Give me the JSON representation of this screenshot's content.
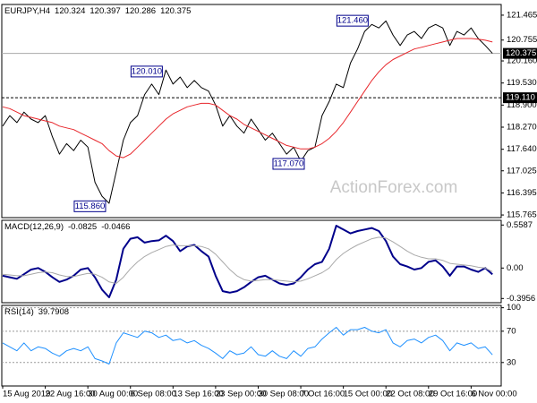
{
  "chart_data": [
    {
      "type": "line",
      "symbol": "EURJPY,H4",
      "ohlc": [
        120.324,
        120.397,
        120.286,
        120.375
      ],
      "watermark": "ActionForex.com",
      "ylim": [
        115.69,
        121.77
      ],
      "yticks": [
        121.465,
        120.755,
        {
          "value": 120.16,
          "label": "120.160"
        },
        {
          "value": 119.53,
          "label": "119.530"
        },
        {
          "value": 118.9,
          "label": "118.900"
        },
        {
          "value": 118.27,
          "label": "118.270"
        },
        {
          "value": 117.64,
          "label": "117.640"
        },
        117.025,
        116.395,
        115.765
      ],
      "last_price": 120.375,
      "level": {
        "value": 119.11,
        "label": "119.110"
      },
      "annotations": [
        {
          "index": 52,
          "value": 121.46,
          "label": "121.460"
        },
        {
          "index": 23,
          "value": 120.01,
          "label": "120.010"
        },
        {
          "index": 43,
          "value": 117.07,
          "label": "117.070"
        },
        {
          "index": 15,
          "value": 115.86,
          "label": "115.860"
        }
      ],
      "series": [
        {
          "color": "#000000",
          "values": [
            118.3,
            118.6,
            118.4,
            118.7,
            118.5,
            118.4,
            118.6,
            118.0,
            117.5,
            117.8,
            117.6,
            117.9,
            117.7,
            116.7,
            116.3,
            116.1,
            117.0,
            117.9,
            118.4,
            118.6,
            119.2,
            119.5,
            119.2,
            119.9,
            119.5,
            119.7,
            119.4,
            119.6,
            119.4,
            119.3,
            118.9,
            118.3,
            118.6,
            118.3,
            118.1,
            118.5,
            118.2,
            117.9,
            118.1,
            117.8,
            117.5,
            117.7,
            117.3,
            117.6,
            117.7,
            118.6,
            119.0,
            119.5,
            119.4,
            120.1,
            120.5,
            121.0,
            121.2,
            121.1,
            121.3,
            120.9,
            120.6,
            120.9,
            121.0,
            120.8,
            121.1,
            121.2,
            121.1,
            120.6,
            121.0,
            120.9,
            121.1,
            120.8,
            120.6,
            120.375
          ]
        },
        {
          "color": "#e8262b",
          "values": [
            118.85,
            118.8,
            118.7,
            118.6,
            118.55,
            118.5,
            118.45,
            118.4,
            118.3,
            118.25,
            118.2,
            118.1,
            118.0,
            117.9,
            117.8,
            117.6,
            117.45,
            117.4,
            117.5,
            117.7,
            117.9,
            118.1,
            118.3,
            118.5,
            118.65,
            118.75,
            118.85,
            118.9,
            118.95,
            118.95,
            118.9,
            118.75,
            118.6,
            118.5,
            118.35,
            118.25,
            118.15,
            118.05,
            117.95,
            117.85,
            117.75,
            117.7,
            117.65,
            117.65,
            117.7,
            117.8,
            117.95,
            118.15,
            118.4,
            118.7,
            119.0,
            119.3,
            119.6,
            119.85,
            120.05,
            120.2,
            120.3,
            120.4,
            120.5,
            120.55,
            120.6,
            120.65,
            120.7,
            120.75,
            120.8,
            120.8,
            120.8,
            120.78,
            120.75,
            120.7
          ]
        }
      ]
    },
    {
      "type": "line",
      "name": "MACD(12,26,9)",
      "header_values": [
        -0.0825,
        -0.0466
      ],
      "ylim": [
        -0.45,
        0.62
      ],
      "yticks": [
        0.5587,
        {
          "value": 0,
          "label": "0.00"
        },
        -0.3956
      ],
      "series": [
        {
          "color": "#00008b",
          "width": 2,
          "values": [
            -0.1,
            -0.12,
            -0.14,
            -0.08,
            -0.02,
            0.0,
            -0.05,
            -0.12,
            -0.18,
            -0.15,
            -0.1,
            -0.02,
            0.0,
            -0.12,
            -0.28,
            -0.38,
            -0.15,
            0.25,
            0.38,
            0.4,
            0.33,
            0.35,
            0.36,
            0.42,
            0.35,
            0.22,
            0.28,
            0.3,
            0.22,
            0.15,
            -0.1,
            -0.3,
            -0.32,
            -0.3,
            -0.25,
            -0.18,
            -0.12,
            -0.1,
            -0.15,
            -0.2,
            -0.22,
            -0.2,
            -0.12,
            -0.02,
            0.05,
            0.08,
            0.25,
            0.55,
            0.5,
            0.45,
            0.48,
            0.5,
            0.52,
            0.48,
            0.35,
            0.15,
            0.05,
            0.02,
            -0.02,
            0.0,
            0.08,
            0.1,
            0.02,
            -0.1,
            0.02,
            0.02,
            -0.02,
            -0.05,
            0.0,
            -0.0825
          ]
        },
        {
          "color": "#a9a9a9",
          "width": 1,
          "values": [
            -0.08,
            -0.09,
            -0.1,
            -0.1,
            -0.08,
            -0.06,
            -0.05,
            -0.06,
            -0.09,
            -0.11,
            -0.11,
            -0.09,
            -0.07,
            -0.08,
            -0.12,
            -0.18,
            -0.2,
            -0.12,
            -0.01,
            0.08,
            0.15,
            0.2,
            0.24,
            0.28,
            0.3,
            0.29,
            0.29,
            0.29,
            0.28,
            0.25,
            0.18,
            0.08,
            -0.02,
            -0.1,
            -0.15,
            -0.17,
            -0.16,
            -0.15,
            -0.15,
            -0.16,
            -0.17,
            -0.18,
            -0.17,
            -0.14,
            -0.1,
            -0.06,
            0.0,
            0.11,
            0.19,
            0.25,
            0.3,
            0.34,
            0.38,
            0.4,
            0.39,
            0.34,
            0.28,
            0.22,
            0.17,
            0.14,
            0.12,
            0.12,
            0.1,
            0.06,
            0.05,
            0.04,
            0.03,
            0.01,
            0.0,
            -0.0466
          ]
        }
      ]
    },
    {
      "type": "line",
      "name": "RSI(14)",
      "header_values": [
        39.7908
      ],
      "ylim": [
        0,
        103
      ],
      "yticks": [
        100,
        70,
        30
      ],
      "grid": true,
      "categories": [
        "15 Aug 2019",
        null,
        null,
        null,
        null,
        null,
        "22 Aug 16:00",
        null,
        null,
        null,
        null,
        null,
        "30 Aug 00:00",
        null,
        null,
        null,
        null,
        null,
        "6 Sep 08:00",
        null,
        null,
        null,
        null,
        null,
        "13 Sep 16:00",
        null,
        null,
        null,
        null,
        null,
        "23 Sep 00:00",
        null,
        null,
        null,
        null,
        null,
        "30 Sep 08:00",
        null,
        null,
        null,
        null,
        null,
        "7 Oct 16:00",
        null,
        null,
        null,
        null,
        null,
        "15 Oct 00:00",
        null,
        null,
        null,
        null,
        null,
        "22 Oct 08:00",
        null,
        null,
        null,
        null,
        null,
        "29 Oct 16:00",
        null,
        null,
        null,
        null,
        null,
        "6 Nov 00:00",
        null,
        null,
        null
      ],
      "series": [
        {
          "color": "#1e90ff",
          "width": 1,
          "values": [
            55,
            50,
            45,
            55,
            45,
            50,
            48,
            42,
            38,
            45,
            48,
            45,
            50,
            35,
            32,
            28,
            55,
            68,
            65,
            62,
            70,
            68,
            62,
            65,
            58,
            60,
            55,
            58,
            52,
            48,
            42,
            35,
            45,
            40,
            42,
            50,
            40,
            38,
            45,
            38,
            35,
            45,
            38,
            48,
            50,
            60,
            68,
            75,
            65,
            72,
            72,
            75,
            70,
            68,
            72,
            55,
            50,
            58,
            60,
            55,
            62,
            65,
            58,
            45,
            55,
            52,
            55,
            48,
            50,
            39.7908
          ]
        }
      ]
    }
  ]
}
